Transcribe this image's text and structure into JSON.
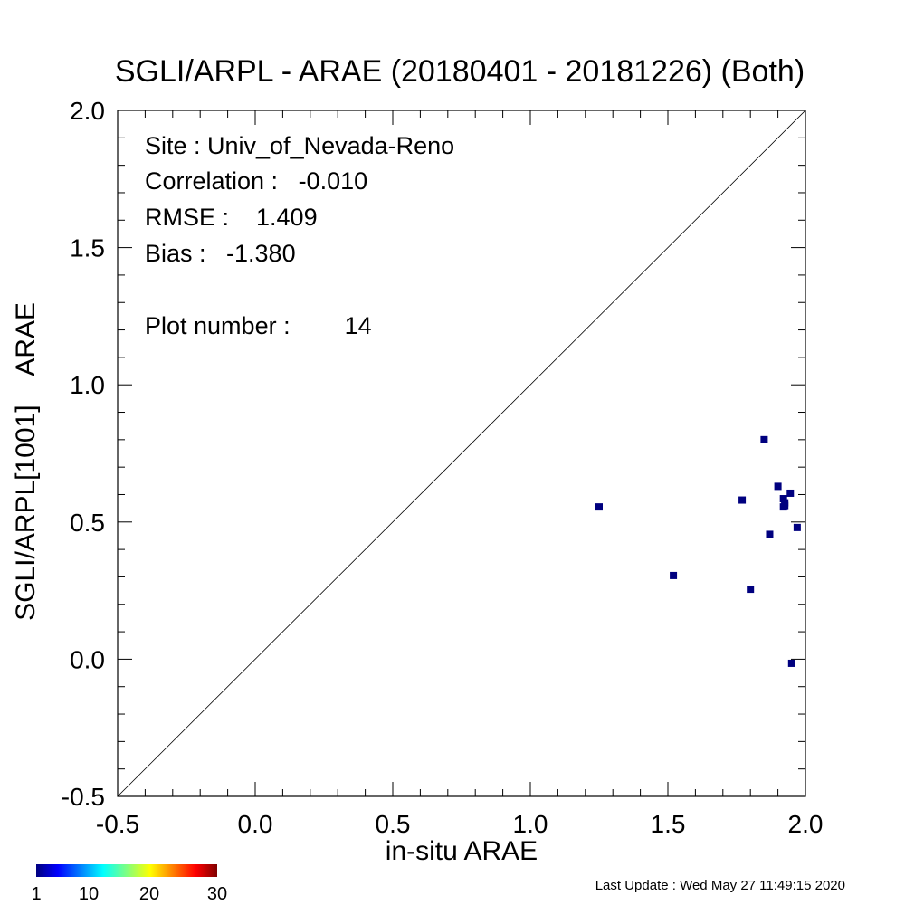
{
  "chart_data": {
    "type": "scatter",
    "title": "SGLI/ARPL - ARAE (20180401 - 20181226) (Both)",
    "xlabel": "in-situ ARAE",
    "ylabel": "SGLI/ARPL[1001]    ARAE",
    "xlim": [
      -0.5,
      2.0
    ],
    "ylim": [
      -0.5,
      2.0
    ],
    "x_ticks": [
      "-0.5",
      "0.0",
      "0.5",
      "1.0",
      "1.5",
      "2.0"
    ],
    "y_ticks": [
      "-0.5",
      "0.0",
      "0.5",
      "1.0",
      "1.5",
      "2.0"
    ],
    "reference_line": "1:1",
    "grid": false,
    "point_color": "#00007f",
    "points": [
      {
        "x": 1.25,
        "y": 0.555
      },
      {
        "x": 1.52,
        "y": 0.305
      },
      {
        "x": 1.77,
        "y": 0.58
      },
      {
        "x": 1.8,
        "y": 0.255
      },
      {
        "x": 1.85,
        "y": 0.8
      },
      {
        "x": 1.87,
        "y": 0.455
      },
      {
        "x": 1.9,
        "y": 0.63
      },
      {
        "x": 1.92,
        "y": 0.585
      },
      {
        "x": 1.92,
        "y": 0.555
      },
      {
        "x": 1.925,
        "y": 0.57
      },
      {
        "x": 1.945,
        "y": 0.605
      },
      {
        "x": 1.95,
        "y": -0.015
      },
      {
        "x": 1.97,
        "y": 0.48
      },
      {
        "x": 1.925,
        "y": 0.56
      }
    ]
  },
  "annotations": {
    "site": "Site : Univ_of_Nevada-Reno",
    "correlation": "Correlation :   -0.010",
    "rmse": "RMSE :    1.409",
    "bias": "Bias :   -1.380",
    "plot_number": "Plot number :        14"
  },
  "colorbar": {
    "tick_labels": [
      "1",
      "10",
      "20",
      "30"
    ],
    "colors": [
      "#00007f",
      "#0000ff",
      "#00ffff",
      "#ffff00",
      "#ff0000",
      "#7f0000"
    ]
  },
  "footer": {
    "last_update": "Last Update : Wed May 27 11:49:15 2020"
  }
}
